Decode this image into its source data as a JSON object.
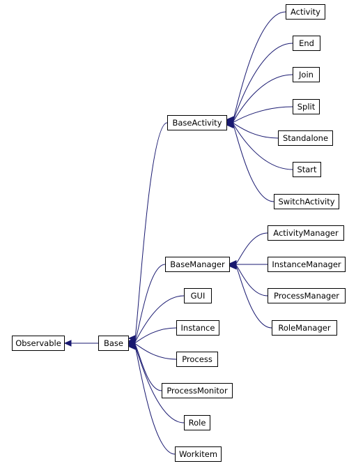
{
  "diagram": {
    "edge_color": "#191970",
    "nodes": {
      "observable": "Observable",
      "base": "Base",
      "base_activity": "BaseActivity",
      "base_manager": "BaseManager",
      "gui": "GUI",
      "instance": "Instance",
      "process": "Process",
      "process_monitor": "ProcessMonitor",
      "role": "Role",
      "workitem": "Workitem",
      "activity": "Activity",
      "end": "End",
      "join": "Join",
      "split": "Split",
      "standalone": "Standalone",
      "start": "Start",
      "switch_activity": "SwitchActivity",
      "activity_manager": "ActivityManager",
      "instance_manager": "InstanceManager",
      "process_manager": "ProcessManager",
      "role_manager": "RoleManager"
    },
    "edges": [
      {
        "from": "base",
        "to": "observable"
      },
      {
        "from": "base_activity",
        "to": "base"
      },
      {
        "from": "base_manager",
        "to": "base"
      },
      {
        "from": "gui",
        "to": "base"
      },
      {
        "from": "instance",
        "to": "base"
      },
      {
        "from": "process",
        "to": "base"
      },
      {
        "from": "process_monitor",
        "to": "base"
      },
      {
        "from": "role",
        "to": "base"
      },
      {
        "from": "workitem",
        "to": "base"
      },
      {
        "from": "activity",
        "to": "base_activity"
      },
      {
        "from": "end",
        "to": "base_activity"
      },
      {
        "from": "join",
        "to": "base_activity"
      },
      {
        "from": "split",
        "to": "base_activity"
      },
      {
        "from": "standalone",
        "to": "base_activity"
      },
      {
        "from": "start",
        "to": "base_activity"
      },
      {
        "from": "switch_activity",
        "to": "base_activity"
      },
      {
        "from": "activity_manager",
        "to": "base_manager"
      },
      {
        "from": "instance_manager",
        "to": "base_manager"
      },
      {
        "from": "process_manager",
        "to": "base_manager"
      },
      {
        "from": "role_manager",
        "to": "base_manager"
      }
    ]
  }
}
